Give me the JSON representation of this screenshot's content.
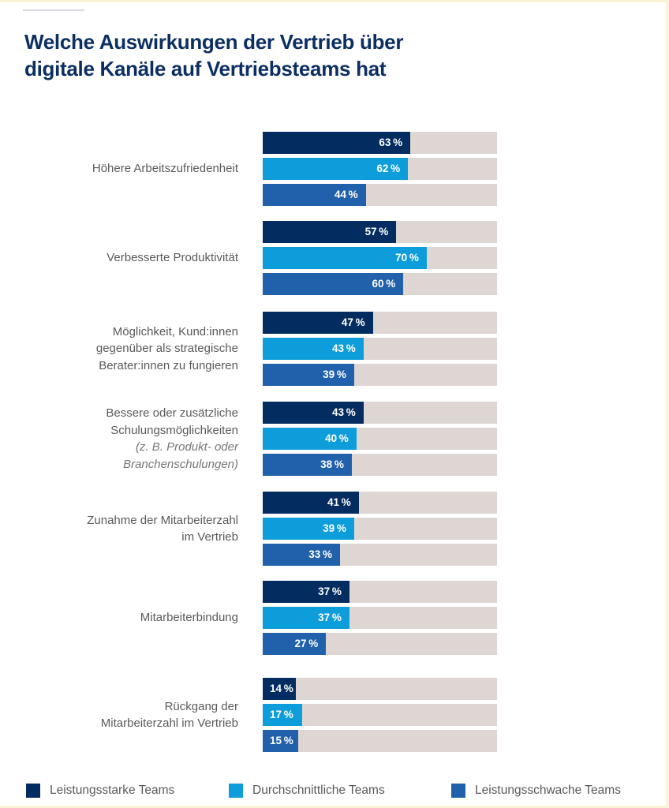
{
  "page": {
    "title_line1": "Welche Auswirkungen der Vertrieb über",
    "title_line2": "digitale Kanäle auf Vertriebsteams hat"
  },
  "colors": {
    "title": "#0b2e63",
    "track": "#ded6d2",
    "series": [
      "#032d60",
      "#0d9dda",
      "#2160aa"
    ]
  },
  "chart_data": {
    "type": "bar",
    "orientation": "horizontal",
    "title": "Welche Auswirkungen der Vertrieb über digitale Kanäle auf Vertriebsteams hat",
    "xlabel": "",
    "ylabel": "",
    "xlim": [
      0,
      100
    ],
    "unit": "%",
    "grid": false,
    "legend_position": "bottom",
    "categories": [
      {
        "lines": [
          "Höhere Arbeitszufriedenheit"
        ],
        "note": []
      },
      {
        "lines": [
          "Verbesserte Produktivität"
        ],
        "note": []
      },
      {
        "lines": [
          "Möglichkeit, Kund:innen",
          "gegenüber als strategische",
          "Berater:innen zu fungieren"
        ],
        "note": []
      },
      {
        "lines": [
          "Bessere oder zusätzliche",
          "Schulungsmöglichkeiten"
        ],
        "note": [
          "(z. B. Produkt- oder",
          "Branchenschulungen)"
        ]
      },
      {
        "lines": [
          "Zunahme der Mitarbeiterzahl",
          "im Vertrieb"
        ],
        "note": []
      },
      {
        "lines": [
          "Mitarbeiterbindung"
        ],
        "note": []
      },
      {
        "lines": [
          "Rückgang der",
          "Mitarbeiterzahl im Vertrieb"
        ],
        "note": []
      }
    ],
    "series": [
      {
        "name": "Leistungsstarke Teams",
        "values": [
          63,
          57,
          47,
          43,
          41,
          37,
          14
        ]
      },
      {
        "name": "Durchschnittliche Teams",
        "values": [
          62,
          70,
          43,
          40,
          39,
          37,
          17
        ]
      },
      {
        "name": "Leistungsschwache Teams",
        "values": [
          44,
          60,
          39,
          38,
          33,
          27,
          15
        ]
      }
    ]
  }
}
